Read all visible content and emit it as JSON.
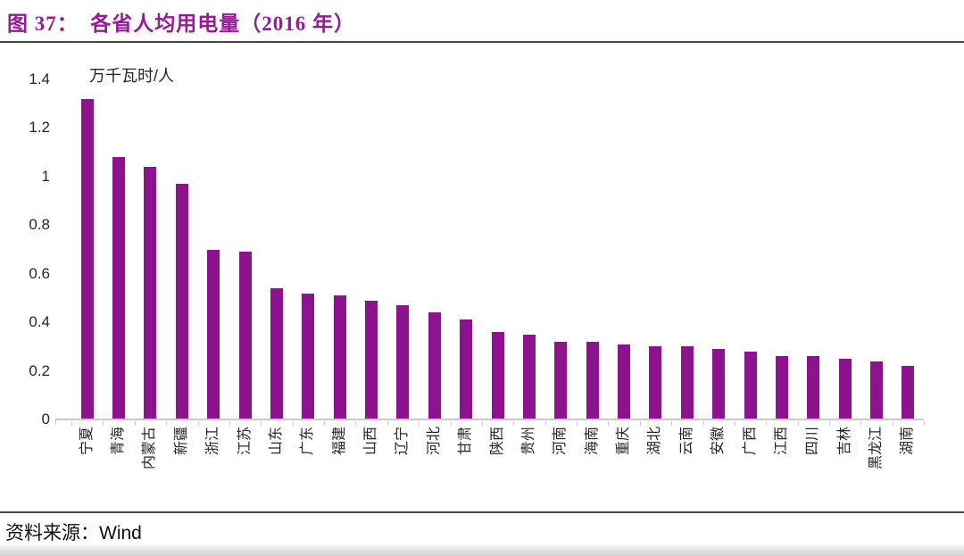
{
  "title": "图 37：  各省人均用电量（2016 年）",
  "colors": {
    "accent": "#9A189A",
    "bar": "#8D128D",
    "axis_line": "#C9C9C9",
    "divider": "#454545",
    "text": "#262626"
  },
  "chart_data": {
    "type": "bar",
    "title": "各省人均用电量（2016 年）",
    "unit_label": "万千瓦时/人",
    "xlabel": "",
    "ylabel": "万千瓦时/人",
    "categories": [
      "宁夏",
      "青海",
      "内蒙古",
      "新疆",
      "浙江",
      "江苏",
      "山东",
      "广东",
      "福建",
      "山西",
      "辽宁",
      "河北",
      "甘肃",
      "陕西",
      "贵州",
      "河南",
      "海南",
      "重庆",
      "湖北",
      "云南",
      "安徽",
      "广西",
      "江西",
      "四川",
      "吉林",
      "黑龙江",
      "湖南"
    ],
    "values": [
      1.32,
      1.08,
      1.04,
      0.97,
      0.7,
      0.69,
      0.54,
      0.52,
      0.51,
      0.49,
      0.47,
      0.44,
      0.41,
      0.36,
      0.35,
      0.32,
      0.32,
      0.31,
      0.3,
      0.3,
      0.29,
      0.28,
      0.26,
      0.26,
      0.25,
      0.24,
      0.22
    ],
    "ylim": [
      0,
      1.4
    ],
    "yticks": [
      0,
      0.2,
      0.4,
      0.6,
      0.8,
      1,
      1.2,
      1.4
    ],
    "ytick_labels": [
      "0",
      "0.2",
      "0.4",
      "0.6",
      "0.8",
      "1",
      "1.2",
      "1.4"
    ],
    "grid": false,
    "legend_position": "none",
    "bar_color": "#8D128D"
  },
  "footer": {
    "source_label": "资料来源：",
    "source_value": "Wind"
  }
}
